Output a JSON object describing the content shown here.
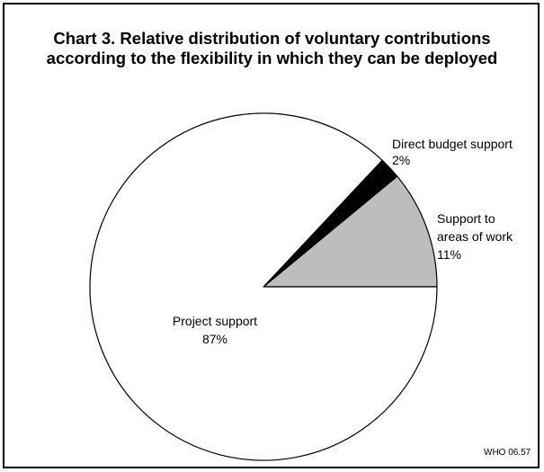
{
  "chart_data": {
    "type": "pie",
    "title_lines": [
      "Chart 3. Relative distribution of voluntary contributions",
      "according to the flexibility in which they can be deployed"
    ],
    "slices": [
      {
        "label_lines": [
          "Support to",
          "areas of work",
          "11%"
        ],
        "value": 11,
        "color": "#bdbdbd"
      },
      {
        "label_lines": [
          "Direct budget support",
          "2%"
        ],
        "value": 2,
        "color": "#000000"
      },
      {
        "label_lines": [
          "Project support",
          "87%"
        ],
        "value": 87,
        "color": "#ffffff"
      }
    ],
    "start_angle_deg": 0,
    "direction": "counterclockwise",
    "legend": "none",
    "footnote": "WHO 06.57"
  }
}
